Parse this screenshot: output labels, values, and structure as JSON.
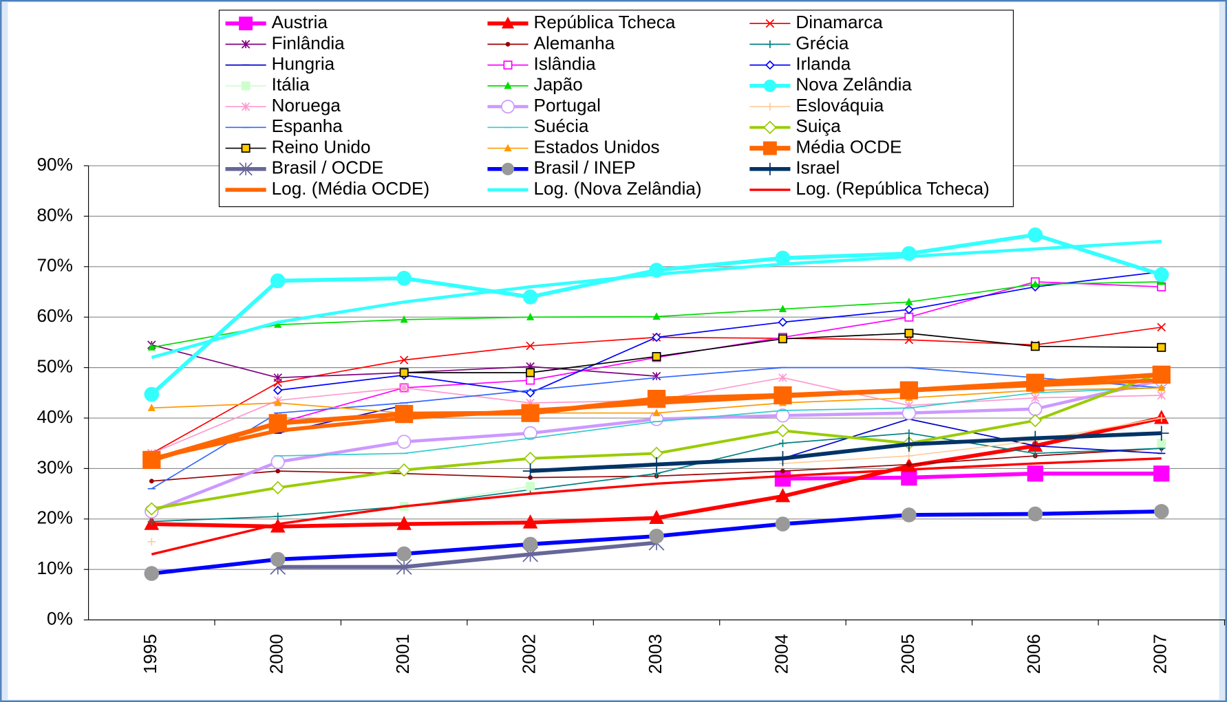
{
  "chart_data": {
    "type": "line",
    "categories": [
      "1995",
      "2000",
      "2001",
      "2002",
      "2003",
      "2004",
      "2005",
      "2006",
      "2007"
    ],
    "ylim": [
      0,
      90
    ],
    "yticks": [
      {
        "value": 0,
        "label": "0%"
      },
      {
        "value": 10,
        "label": "10%"
      },
      {
        "value": 20,
        "label": "20%"
      },
      {
        "value": 30,
        "label": "30%"
      },
      {
        "value": 40,
        "label": "40%"
      },
      {
        "value": 50,
        "label": "50%"
      },
      {
        "value": 60,
        "label": "60%"
      },
      {
        "value": 70,
        "label": "70%"
      },
      {
        "value": 80,
        "label": "80%"
      },
      {
        "value": 90,
        "label": "90%"
      }
    ],
    "grid": true,
    "legend": "top",
    "series": [
      {
        "name": "Austria",
        "color": "#ff00ff",
        "marker": "square",
        "line_width": 5,
        "values": [
          null,
          null,
          null,
          null,
          null,
          28,
          28.2,
          29,
          29
        ]
      },
      {
        "name": "República Tcheca",
        "color": "#ff0000",
        "marker": "triangle",
        "line_width": 5,
        "values": [
          19,
          18.5,
          19,
          19.3,
          20.2,
          24.5,
          30.5,
          34.5,
          40
        ]
      },
      {
        "name": "Dinamarca",
        "color": "#ff0000",
        "marker": "x",
        "line_width": 1.5,
        "values": [
          33,
          47,
          51.5,
          54.3,
          56,
          55.8,
          55.5,
          54.5,
          58
        ]
      },
      {
        "name": "Finlândia",
        "color": "#800080",
        "marker": "asterisk",
        "line_width": 1.5,
        "values": [
          54.5,
          48,
          49,
          50.2,
          48.3,
          null,
          null,
          null,
          null
        ]
      },
      {
        "name": "Alemanha",
        "color": "#990000",
        "marker": "dot",
        "line_width": 1.5,
        "values": [
          27.5,
          29.5,
          29,
          28.2,
          28.5,
          29.5,
          30.8,
          32.5,
          34
        ]
      },
      {
        "name": "Grécia",
        "color": "#008080",
        "marker": "plus",
        "line_width": 1.5,
        "values": [
          19.5,
          20.5,
          22.5,
          25.8,
          29,
          35,
          37,
          33,
          34
        ]
      },
      {
        "name": "Hungria",
        "color": "#0000cc",
        "marker": "dash",
        "line_width": 1.5,
        "values": [
          null,
          37,
          42.5,
          null,
          null,
          32,
          39.8,
          34.5,
          33
        ]
      },
      {
        "name": "Islândia",
        "color": "#ff00ff",
        "marker": "open-square",
        "line_width": 1.5,
        "values": [
          null,
          39,
          46,
          47.5,
          52,
          56,
          60,
          67,
          66
        ]
      },
      {
        "name": "Irlanda",
        "color": "#0000ff",
        "marker": "diamond",
        "line_width": 1.5,
        "values": [
          null,
          45.5,
          48.5,
          45,
          56,
          59,
          61.5,
          66,
          69
        ]
      },
      {
        "name": "Itália",
        "color": "#ccffcc",
        "marker": "square",
        "line_width": 1.5,
        "values": [
          null,
          null,
          22.5,
          26.5,
          null,
          null,
          null,
          null,
          35
        ]
      },
      {
        "name": "Japão",
        "color": "#00dd00",
        "marker": "triangle",
        "line_width": 1.5,
        "values": [
          54,
          58.5,
          59.5,
          60,
          60.1,
          61.6,
          63,
          66.5,
          67
        ]
      },
      {
        "name": "Nova Zelândia",
        "color": "#33ffff",
        "marker": "circle",
        "line_width": 5,
        "values": [
          44.7,
          67.2,
          67.7,
          64,
          69.3,
          71.7,
          72.6,
          76.3,
          68.4
        ]
      },
      {
        "name": "Noruega",
        "color": "#ff99cc",
        "marker": "asterisk",
        "line_width": 1.5,
        "values": [
          33,
          43.5,
          46,
          43,
          43.5,
          48,
          42.5,
          44,
          44.5
        ]
      },
      {
        "name": "Portugal",
        "color": "#cc99ff",
        "marker": "open-circle",
        "line_width": 4,
        "values": [
          21.5,
          31.3,
          35.3,
          37,
          39.8,
          40.5,
          41,
          41.8,
          47.5
        ]
      },
      {
        "name": "Eslováquia",
        "color": "#ffcc99",
        "marker": "plus",
        "line_width": 1.5,
        "values": [
          15.5,
          null,
          null,
          null,
          null,
          31,
          32.5,
          35.5,
          40
        ]
      },
      {
        "name": "Espanha",
        "color": "#3366ff",
        "marker": "dash",
        "line_width": 1.5,
        "values": [
          26,
          41,
          43,
          45.5,
          48,
          50,
          50,
          48,
          46
        ]
      },
      {
        "name": "Suécia",
        "color": "#33cccc",
        "marker": "dash",
        "line_width": 1.5,
        "values": [
          null,
          32.5,
          33,
          36,
          39.3,
          41.5,
          42,
          45,
          46
        ]
      },
      {
        "name": "Suiça",
        "color": "#99cc00",
        "marker": "diamond",
        "line_width": 3.5,
        "values": [
          22,
          26.2,
          29.7,
          32,
          33,
          37.5,
          35,
          39.5,
          49
        ]
      },
      {
        "name": "Reino Unido",
        "color": "#000000",
        "marker": "yellow-square",
        "line_width": 1.5,
        "values": [
          null,
          null,
          49,
          49,
          52.2,
          55.7,
          56.8,
          54.2,
          54
        ]
      },
      {
        "name": "Estados Unidos",
        "color": "#ff9900",
        "marker": "triangle",
        "line_width": 1.5,
        "values": [
          42,
          43,
          41,
          41,
          41,
          43,
          44,
          45.5,
          46
        ]
      },
      {
        "name": "Média OCDE",
        "color": "#ff6600",
        "marker": "square",
        "line_width": 6,
        "values": [
          31.7,
          39,
          40.8,
          41,
          43.8,
          44.5,
          45.5,
          47,
          48.6
        ]
      },
      {
        "name": "Brasil / OCDE",
        "color": "#666699",
        "marker": "asterisk",
        "line_width": 5,
        "values": [
          null,
          10.5,
          10.5,
          13,
          15.3,
          null,
          null,
          null,
          null
        ]
      },
      {
        "name": "Brasil / INEP",
        "color": "#0000ff",
        "marker": "gray-circle",
        "line_width": 5,
        "values": [
          9.2,
          12,
          13.1,
          15,
          16.6,
          19,
          20.8,
          21,
          21.5
        ]
      },
      {
        "name": "Israel",
        "color": "#003366",
        "marker": "plus",
        "line_width": 5,
        "values": [
          null,
          null,
          null,
          29.5,
          30.8,
          32,
          34.8,
          36,
          37
        ]
      },
      {
        "name": "Log. (Média OCDE)",
        "color": "#ff6600",
        "marker": "none",
        "line_width": 5,
        "values": [
          32,
          37.5,
          40,
          41.5,
          43,
          44.3,
          45.5,
          46.5,
          47.5
        ]
      },
      {
        "name": "Log. (Nova Zelândia)",
        "color": "#33ffff",
        "marker": "none",
        "line_width": 4,
        "values": [
          52,
          59,
          63,
          66,
          68.5,
          70.5,
          72,
          73.5,
          75
        ]
      },
      {
        "name": "Log. (República Tcheca)",
        "color": "#ff0000",
        "marker": "none",
        "line_width": 3,
        "values": [
          13,
          19,
          22.5,
          25,
          27,
          28.5,
          29.8,
          31,
          32
        ]
      }
    ]
  }
}
